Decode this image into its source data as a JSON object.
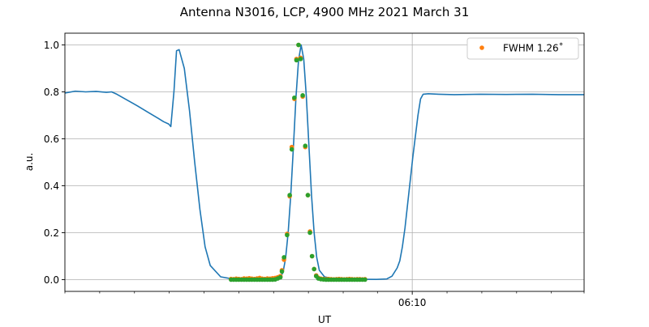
{
  "chart_data": {
    "type": "line",
    "title": "Antenna N3016, LCP, 4900 MHz 2021 March 31",
    "xlabel": "UT",
    "ylabel": "a.u.",
    "xlim": [
      0,
      100
    ],
    "ylim": [
      -0.05,
      1.05
    ],
    "grid": true,
    "yticks": [
      0.0,
      0.2,
      0.4,
      0.6,
      0.8,
      1.0
    ],
    "y_tick_labels": [
      "0.0",
      "0.2",
      "0.4",
      "0.6",
      "0.8",
      "1.0"
    ],
    "x_major_ticks": [
      {
        "x": 66.9,
        "label": "06:10"
      }
    ],
    "x_minor_ticks": [
      0,
      6.7,
      13.4,
      20.1,
      26.8,
      33.5,
      40.2,
      46.9,
      53.6,
      60.2,
      73.6,
      80.3,
      87.0,
      93.7,
      100
    ],
    "legend": {
      "location": "upper right",
      "entries": [
        {
          "label": "FWHM 1.26$^\\circ$",
          "text": "FWHM 1.26˚",
          "color": "#ff7f0e"
        }
      ]
    },
    "series": [
      {
        "kind": "line",
        "color": "#1f77b4",
        "x": [
          0,
          2,
          4,
          6,
          8,
          9,
          10,
          12,
          14,
          16,
          18,
          19,
          20,
          20.4,
          21,
          21.5,
          22,
          23,
          24,
          25,
          26,
          27,
          28,
          30,
          32,
          34,
          36,
          38,
          40,
          41,
          41.5,
          42,
          42.5,
          43,
          43.5,
          44,
          44.5,
          45,
          45.5,
          46,
          46.5,
          47,
          47.5,
          48,
          48.5,
          49,
          50,
          52,
          55,
          60,
          62,
          63,
          64,
          64.5,
          65,
          65.5,
          66,
          67,
          68,
          68.5,
          69,
          70,
          72,
          75,
          80,
          85,
          90,
          95,
          100
        ],
        "y": [
          0.795,
          0.803,
          0.8,
          0.802,
          0.798,
          0.8,
          0.79,
          0.765,
          0.74,
          0.713,
          0.687,
          0.673,
          0.663,
          0.652,
          0.8,
          0.975,
          0.98,
          0.9,
          0.72,
          0.5,
          0.3,
          0.14,
          0.06,
          0.012,
          0.004,
          0.002,
          0.002,
          0.002,
          0.003,
          0.006,
          0.012,
          0.03,
          0.09,
          0.2,
          0.36,
          0.56,
          0.775,
          0.935,
          1.0,
          0.94,
          0.78,
          0.57,
          0.36,
          0.2,
          0.095,
          0.04,
          0.012,
          0.003,
          0.002,
          0.001,
          0.003,
          0.015,
          0.05,
          0.08,
          0.14,
          0.22,
          0.32,
          0.52,
          0.7,
          0.77,
          0.79,
          0.792,
          0.79,
          0.788,
          0.79,
          0.789,
          0.79,
          0.788,
          0.788
        ]
      },
      {
        "kind": "scatter",
        "color": "#ff7f0e",
        "x": [
          32.0,
          32.5,
          33.0,
          33.5,
          34.0,
          34.5,
          35.0,
          35.5,
          36.0,
          36.5,
          37.0,
          37.5,
          38.0,
          38.5,
          39.0,
          39.5,
          40.0,
          40.5,
          41.0,
          41.5,
          41.8,
          42.2,
          42.8,
          43.3,
          43.7,
          44.2,
          44.6,
          45.0,
          45.4,
          45.8,
          46.3,
          46.8,
          47.2,
          47.6,
          48.0,
          48.4,
          48.8,
          49.3,
          49.8,
          50.3,
          50.8,
          51.3,
          51.8,
          52.3,
          52.8,
          53.3,
          53.8,
          54.3,
          54.8,
          55.3,
          55.8,
          56.3,
          56.8,
          57.3,
          57.8
        ],
        "y": [
          0.003,
          0.002,
          0.004,
          0.003,
          0.002,
          0.005,
          0.004,
          0.006,
          0.004,
          0.003,
          0.005,
          0.007,
          0.004,
          0.003,
          0.005,
          0.004,
          0.006,
          0.007,
          0.01,
          0.015,
          0.04,
          0.085,
          0.195,
          0.355,
          0.565,
          0.77,
          0.94,
          1.0,
          0.945,
          0.78,
          0.565,
          0.36,
          0.205,
          0.1,
          0.045,
          0.018,
          0.008,
          0.004,
          0.003,
          0.002,
          0.003,
          0.002,
          0.001,
          0.002,
          0.003,
          0.002,
          0.001,
          0.002,
          0.003,
          0.002,
          0.001,
          0.002,
          0.002,
          0.001,
          0.002
        ]
      },
      {
        "kind": "scatter",
        "color": "#2ca02c",
        "x": [
          32.0,
          32.5,
          33.0,
          33.5,
          34.0,
          34.5,
          35.0,
          35.5,
          36.0,
          36.5,
          37.0,
          37.5,
          38.0,
          38.5,
          39.0,
          39.5,
          40.0,
          40.5,
          41.0,
          41.5,
          41.8,
          42.2,
          42.8,
          43.3,
          43.7,
          44.2,
          44.6,
          45.0,
          45.4,
          45.8,
          46.3,
          46.8,
          47.2,
          47.6,
          48.0,
          48.4,
          48.8,
          49.3,
          49.8,
          50.3,
          50.8,
          51.3,
          51.8,
          52.3,
          52.8,
          53.3,
          53.8,
          54.3,
          54.8,
          55.3,
          55.8,
          56.3,
          56.8,
          57.3,
          57.8
        ],
        "y": [
          0.0,
          0.0,
          0.0,
          0.0,
          0.0,
          0.0,
          0.0,
          0.0,
          0.0,
          0.0,
          0.0,
          0.0,
          0.0,
          0.0,
          0.0,
          0.0,
          0.0,
          0.001,
          0.005,
          0.01,
          0.035,
          0.095,
          0.19,
          0.36,
          0.555,
          0.775,
          0.935,
          1.0,
          0.94,
          0.785,
          0.57,
          0.36,
          0.2,
          0.1,
          0.045,
          0.015,
          0.005,
          0.002,
          0.001,
          0.0,
          0.0,
          0.0,
          0.0,
          0.0,
          0.0,
          0.0,
          0.0,
          0.0,
          0.0,
          0.0,
          0.0,
          0.0,
          0.0,
          0.0,
          0.0
        ]
      }
    ]
  }
}
